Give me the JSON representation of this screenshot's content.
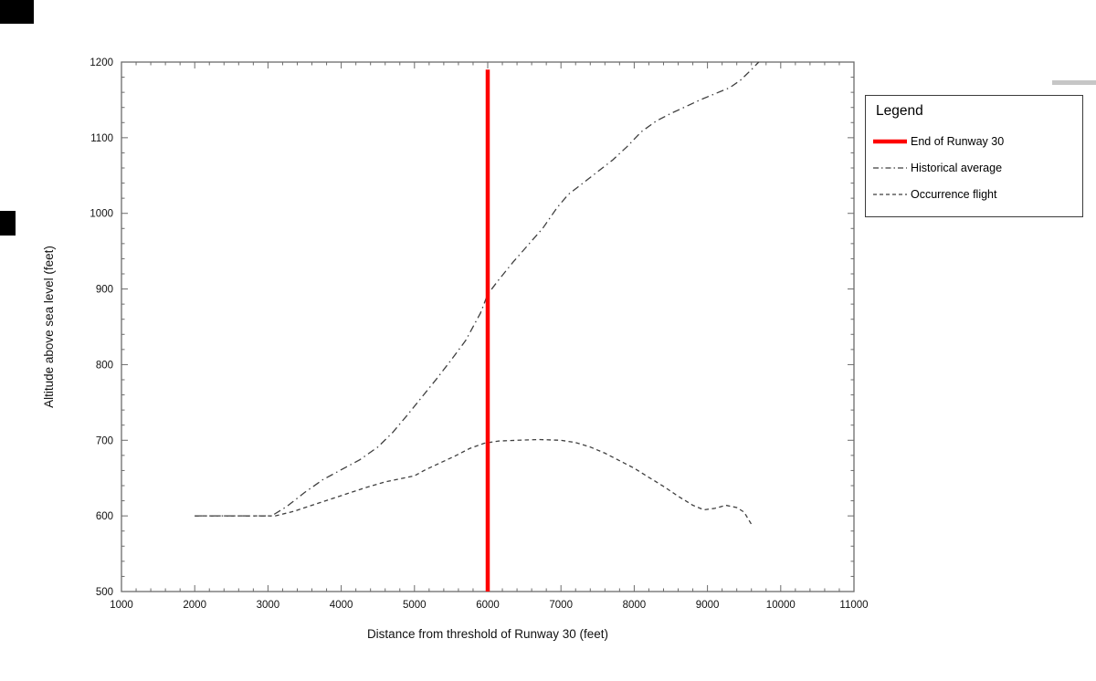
{
  "colors": {
    "runway_line": "#fe0000",
    "series_line": "#3f3f3f",
    "axis_frame": "#6b6b6b",
    "text": "#111111"
  },
  "chart_data": {
    "type": "line",
    "title": "",
    "xlabel": "Distance from threshold of Runway 30 (feet)",
    "ylabel": "Altitude above sea level (feet)",
    "xlim": [
      1000,
      11000
    ],
    "ylim": [
      500,
      1200
    ],
    "xticks": [
      1000,
      2000,
      3000,
      4000,
      5000,
      6000,
      7000,
      8000,
      9000,
      10000,
      11000
    ],
    "yticks": [
      500,
      600,
      700,
      800,
      900,
      1000,
      1100,
      1200
    ],
    "grid": false,
    "legend": {
      "title": "Legend",
      "position": "outside-right",
      "items": [
        {
          "label": "End of Runway 30",
          "style": "solid-thick",
          "color": "#fe0000"
        },
        {
          "label": "Historical average",
          "style": "dash-dot",
          "color": "#3f3f3f"
        },
        {
          "label": "Occurrence flight",
          "style": "dashed",
          "color": "#3f3f3f"
        }
      ]
    },
    "annotations": [
      {
        "type": "vline",
        "label": "End of Runway 30",
        "x": 6000,
        "y_from": 500,
        "y_to": 1190,
        "color": "#fe0000",
        "width": 4.5
      }
    ],
    "series": [
      {
        "name": "Historical average",
        "style": "dash-dot",
        "color": "#3f3f3f",
        "points": [
          [
            2000,
            600
          ],
          [
            2600,
            600
          ],
          [
            3050,
            600
          ],
          [
            3250,
            612
          ],
          [
            3500,
            631
          ],
          [
            3750,
            648
          ],
          [
            4000,
            661
          ],
          [
            4250,
            674
          ],
          [
            4500,
            691
          ],
          [
            4700,
            710
          ],
          [
            4900,
            733
          ],
          [
            5100,
            757
          ],
          [
            5300,
            781
          ],
          [
            5500,
            806
          ],
          [
            5700,
            832
          ],
          [
            5900,
            868
          ],
          [
            6000,
            893
          ],
          [
            6150,
            912
          ],
          [
            6350,
            936
          ],
          [
            6550,
            958
          ],
          [
            6750,
            980
          ],
          [
            6950,
            1008
          ],
          [
            7100,
            1025
          ],
          [
            7300,
            1040
          ],
          [
            7500,
            1055
          ],
          [
            7700,
            1070
          ],
          [
            7900,
            1088
          ],
          [
            8100,
            1108
          ],
          [
            8300,
            1122
          ],
          [
            8500,
            1132
          ],
          [
            8700,
            1141
          ],
          [
            8900,
            1150
          ],
          [
            9100,
            1158
          ],
          [
            9300,
            1166
          ],
          [
            9450,
            1176
          ],
          [
            9600,
            1190
          ],
          [
            9700,
            1200
          ]
        ]
      },
      {
        "name": "Occurrence flight",
        "style": "dashed",
        "color": "#3f3f3f",
        "points": [
          [
            2000,
            600
          ],
          [
            2600,
            600
          ],
          [
            3100,
            600
          ],
          [
            3350,
            606
          ],
          [
            3600,
            614
          ],
          [
            3850,
            622
          ],
          [
            4100,
            630
          ],
          [
            4350,
            638
          ],
          [
            4600,
            645
          ],
          [
            4850,
            650
          ],
          [
            5000,
            653
          ],
          [
            5150,
            661
          ],
          [
            5350,
            670
          ],
          [
            5550,
            679
          ],
          [
            5750,
            689
          ],
          [
            5950,
            696
          ],
          [
            6150,
            699
          ],
          [
            6400,
            700
          ],
          [
            6700,
            701
          ],
          [
            7000,
            700
          ],
          [
            7200,
            697
          ],
          [
            7400,
            691
          ],
          [
            7600,
            683
          ],
          [
            7800,
            673
          ],
          [
            8000,
            663
          ],
          [
            8200,
            651
          ],
          [
            8400,
            639
          ],
          [
            8600,
            626
          ],
          [
            8800,
            614
          ],
          [
            8950,
            608
          ],
          [
            9100,
            610
          ],
          [
            9250,
            614
          ],
          [
            9400,
            611
          ],
          [
            9500,
            605
          ],
          [
            9600,
            589
          ]
        ]
      }
    ]
  }
}
